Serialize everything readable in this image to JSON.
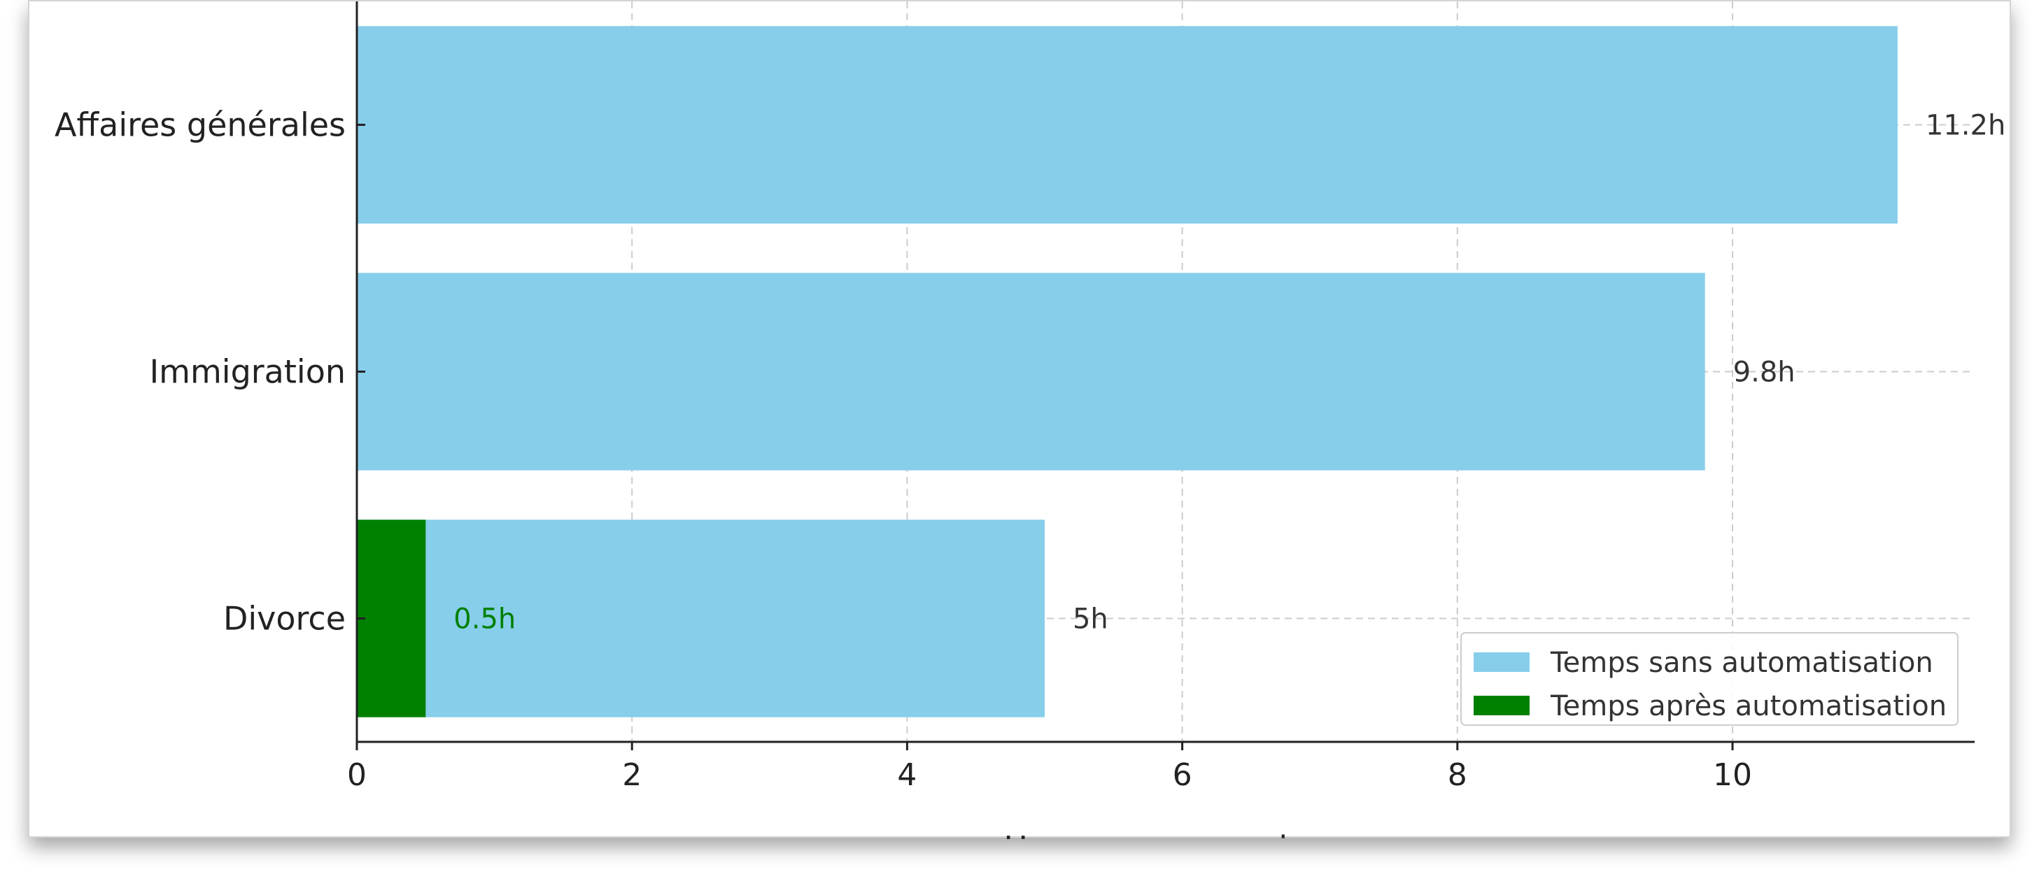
{
  "chart_data": {
    "type": "bar",
    "orientation": "horizontal",
    "categories": [
      "Affaires générales",
      "Immigration",
      "Divorce"
    ],
    "series": [
      {
        "name": "Temps sans automatisation",
        "color": "#87CEEB",
        "values": [
          11.2,
          9.8,
          5
        ]
      },
      {
        "name": "Temps après automatisation",
        "color": "#008000",
        "values": [
          null,
          null,
          0.5
        ]
      }
    ],
    "bar_labels": [
      {
        "category": "Affaires générales",
        "text": "11.2h",
        "value": 11.2,
        "color": "#333333"
      },
      {
        "category": "Immigration",
        "text": "9.8h",
        "value": 9.8,
        "color": "#333333"
      },
      {
        "category": "Divorce",
        "text": "5h",
        "value": 5,
        "color": "#333333"
      },
      {
        "category": "Divorce",
        "text": "0.5h",
        "value": 0.5,
        "color": "#008000"
      }
    ],
    "xlabel": "Heures par semaine",
    "ylabel": "",
    "title": "",
    "xlim": [
      0,
      11.76
    ],
    "xticks": [
      "0",
      "2",
      "4",
      "6",
      "8",
      "10"
    ],
    "grid": true,
    "legend": "bottom-right"
  }
}
